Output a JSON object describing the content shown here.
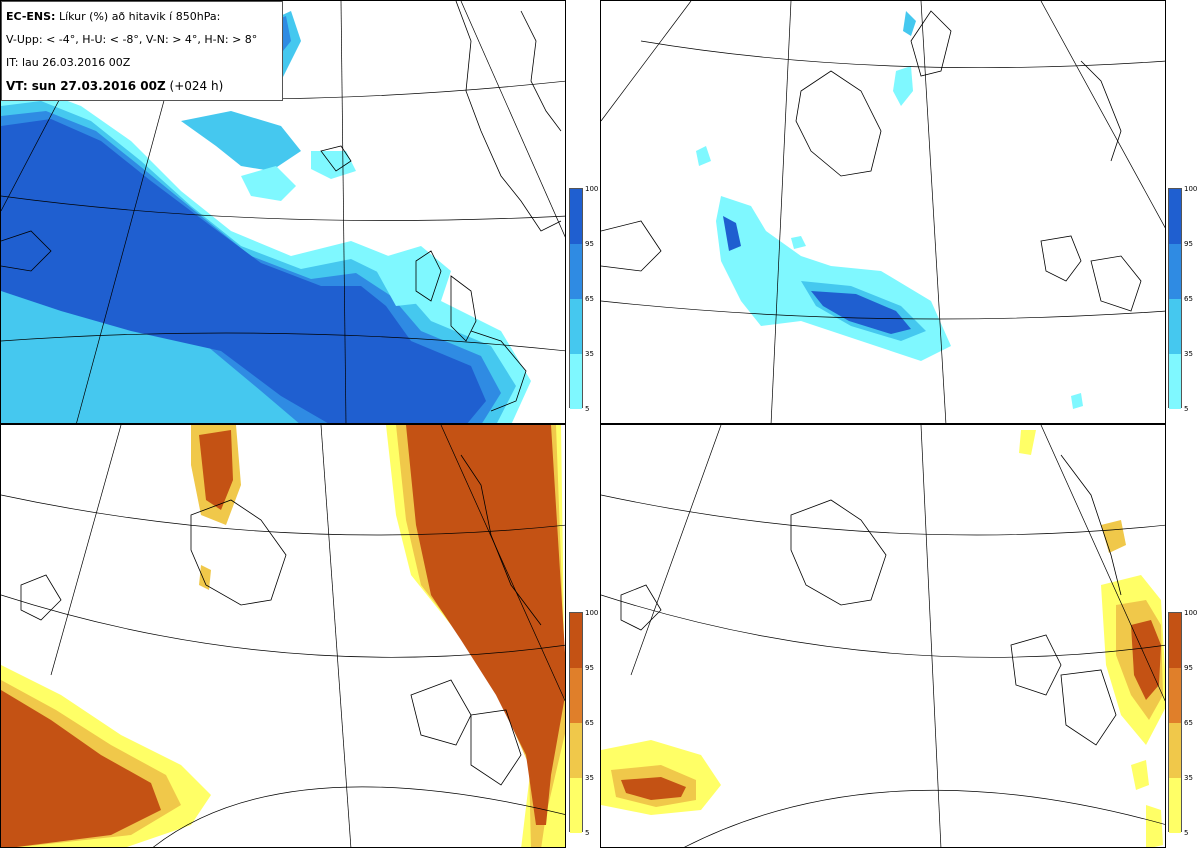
{
  "header": {
    "model": "EC-ENS:",
    "title_rest": "Líkur (%) að hitavik í 850hPa:",
    "legend_line": "V-Upp: < -4°, H-U: < -8°, V-N: > 4°, H-N: > 8°",
    "init_time": "IT: lau 26.03.2016 00Z",
    "valid_prefix": "VT: sun 27.03.2016 00Z",
    "valid_suffix": "(+024 h)"
  },
  "colors": {
    "cold_scale": [
      "#7ff8ff",
      "#45c8ef",
      "#2f8be3",
      "#1f5fd0"
    ],
    "warm_scale": [
      "#ffff66",
      "#f0c84a",
      "#e07f2a",
      "#c45214"
    ],
    "coast": "#000000",
    "grid": "#000000"
  },
  "colorbar": {
    "ticks": [
      "100",
      "95",
      "65",
      "35",
      "5"
    ]
  },
  "panels": [
    {
      "id": "upper-left",
      "variable": "V-Upp",
      "scale": "cold"
    },
    {
      "id": "upper-right",
      "variable": "H-U",
      "scale": "cold"
    },
    {
      "id": "lower-left",
      "variable": "V-N",
      "scale": "warm"
    },
    {
      "id": "lower-right",
      "variable": "H-N",
      "scale": "warm"
    }
  ]
}
